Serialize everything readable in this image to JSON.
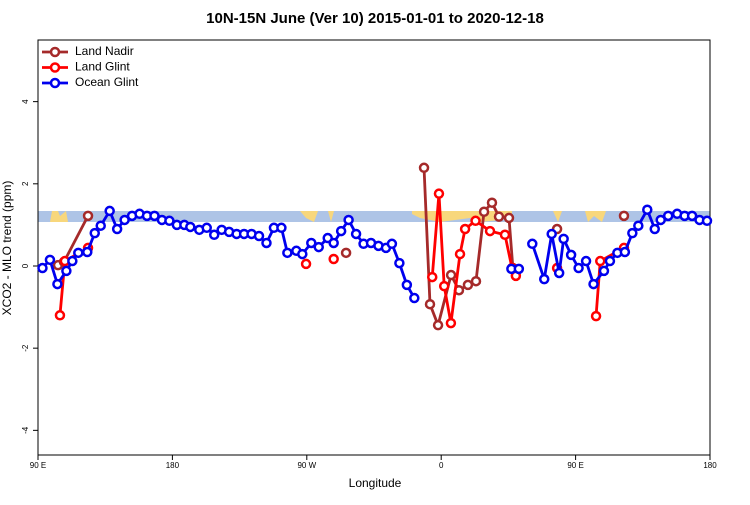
{
  "chart_data": {
    "type": "line",
    "title": "10N-15N June (Ver 10)   2015-01-01 to 2020-12-18",
    "x_label": "Longitude",
    "y_label": "XCO2 - MLO trend (ppm)",
    "xlim": [
      90,
      540
    ],
    "xticks": [
      {
        "value": 90,
        "label": "90 E"
      },
      {
        "value": 180,
        "label": "180"
      },
      {
        "value": 270,
        "label": "90 W"
      },
      {
        "value": 360,
        "label": "0"
      },
      {
        "value": 450,
        "label": "90 E"
      },
      {
        "value": 540,
        "label": "180"
      }
    ],
    "ylim": [
      -4.6,
      5.5
    ],
    "yticks": [
      -4,
      -2,
      0,
      2,
      4
    ],
    "legend": "top-left",
    "series": [
      {
        "name": "Land Nadir",
        "color": "#a52a2a",
        "x": [
          103.4,
          107.4,
          123.5,
          null,
          296.3,
          null,
          348.5,
          352.5,
          357.9,
          366.6,
          371.9,
          377.9,
          383.3,
          388.7,
          394,
          398.7,
          405.4,
          408,
          null,
          437.6,
          null,
          482.4
        ],
        "values": [
          0.02,
          0.1,
          1.22,
          null,
          0.32,
          null,
          2.39,
          -0.93,
          -1.44,
          -0.22,
          -0.59,
          -0.46,
          -0.37,
          1.32,
          1.54,
          1.2,
          1.17,
          -0.05,
          null,
          0.9,
          null,
          1.22
        ]
      },
      {
        "name": "Land Glint",
        "color": "#ff0000",
        "x": [
          104.7,
          108,
          123.5,
          null,
          269.5,
          null,
          288,
          null,
          354,
          358.5,
          362,
          366.5,
          372.6,
          376,
          383,
          392.7,
          402.7,
          407.4,
          410,
          null,
          437.6,
          null,
          463.7,
          466.5,
          482.4
        ],
        "values": [
          -1.2,
          0.12,
          0.44,
          null,
          0.05,
          null,
          0.17,
          null,
          -0.27,
          1.76,
          -0.49,
          -1.39,
          0.29,
          0.9,
          1.1,
          0.85,
          0.76,
          -0.05,
          -0.24,
          null,
          -0.05,
          null,
          -1.22,
          0.12,
          0.44
        ]
      },
      {
        "name": "Ocean Glint",
        "color": "#0000ee",
        "x": [
          93,
          98,
          103,
          109,
          113,
          117,
          123,
          128,
          132,
          138,
          143,
          148,
          153,
          158,
          163,
          168,
          173,
          178,
          183,
          188,
          192,
          198,
          203,
          208,
          213,
          218,
          223,
          228,
          233,
          238,
          243,
          248,
          253,
          257,
          263,
          267,
          273,
          278,
          284,
          288,
          293,
          298,
          303,
          308,
          313,
          318,
          323,
          327,
          332,
          337,
          342,
          null,
          407,
          412,
          null,
          421,
          429,
          434,
          439,
          442,
          447,
          452,
          457,
          462,
          469,
          473,
          478,
          483,
          488,
          492,
          498,
          503,
          507,
          512,
          518,
          523,
          528,
          533,
          538
        ],
        "values": [
          -0.05,
          0.15,
          -0.44,
          -0.12,
          0.12,
          0.32,
          0.34,
          0.8,
          0.98,
          1.34,
          0.9,
          1.12,
          1.22,
          1.27,
          1.22,
          1.22,
          1.12,
          1.1,
          1.0,
          1.0,
          0.95,
          0.88,
          0.93,
          0.76,
          0.88,
          0.83,
          0.78,
          0.78,
          0.78,
          0.73,
          0.56,
          0.93,
          0.93,
          0.32,
          0.37,
          0.29,
          0.56,
          0.46,
          0.68,
          0.56,
          0.85,
          1.12,
          0.78,
          0.54,
          0.56,
          0.49,
          0.44,
          0.54,
          0.07,
          -0.46,
          -0.78,
          null,
          -0.07,
          -0.07,
          null,
          0.54,
          -0.32,
          0.78,
          -0.17,
          0.66,
          0.27,
          -0.05,
          0.12,
          -0.44,
          -0.12,
          0.12,
          0.32,
          0.34,
          0.8,
          0.98,
          1.37,
          0.9,
          1.12,
          1.22,
          1.27,
          1.22,
          1.22,
          1.12,
          1.1
        ]
      }
    ]
  }
}
